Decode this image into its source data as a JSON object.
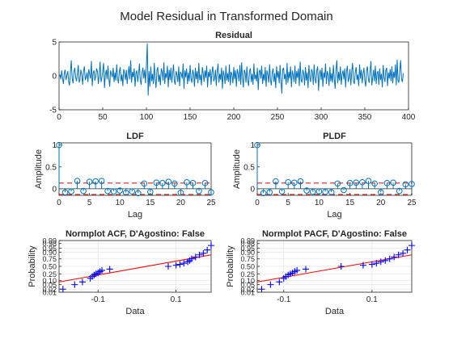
{
  "figure": {
    "title": "Model Residual in Transformed Domain"
  },
  "colors": {
    "series": "#0072BD",
    "conf": "#D9241B",
    "fit": "#FF0000",
    "marker": "#0000FF",
    "axis": "#262626",
    "grid": "#E6E6E6"
  },
  "chart_data": [
    {
      "id": "residual",
      "type": "line",
      "title": "Residual",
      "xlabel": "",
      "ylabel": "",
      "xlim": [
        0,
        400
      ],
      "ylim": [
        -5,
        5
      ],
      "xticks": [
        0,
        50,
        100,
        150,
        200,
        250,
        300,
        350,
        400
      ],
      "yticks": [
        -5,
        0,
        5
      ],
      "y": [
        0.2,
        -0.5,
        0.8,
        -0.3,
        -1.2,
        0.4,
        0.9,
        -0.6,
        0.1,
        0.7,
        -0.9,
        -1.4,
        0.5,
        2.3,
        -0.4,
        -1.1,
        0.6,
        1.2,
        -0.2,
        -0.8,
        0.3,
        1.6,
        -1.0,
        -0.5,
        0.9,
        0.2,
        -1.3,
        0.7,
        1.4,
        -0.6,
        -0.2,
        0.5,
        -0.9,
        1.0,
        0.3,
        -0.4,
        2.2,
        -1.5,
        0.4,
        0.8,
        -0.7,
        -0.1,
        1.1,
        0.6,
        -1.2,
        0.2,
        2.1,
        -0.9,
        -0.3,
        0.7,
        1.9,
        -1.8,
        0.1,
        0.9,
        -0.5,
        1.5,
        -0.4,
        -1.6,
        0.8,
        0.3,
        -0.2,
        1.2,
        -0.9,
        0.5,
        -0.7,
        1.7,
        -0.3,
        -1.1,
        0.6,
        1.3,
        -0.8,
        0.2,
        -1.5,
        1.0,
        0.4,
        -0.6,
        0.9,
        -1.2,
        0.3,
        1.4,
        -0.5,
        2.3,
        -1.0,
        0.6,
        -0.2,
        1.1,
        -1.6,
        0.4,
        0.8,
        -0.9,
        0.2,
        1.8,
        -0.7,
        -1.3,
        0.5,
        1.2,
        -0.4,
        0.9,
        -1.1,
        1.6,
        4.8,
        -2.9,
        0.7,
        -1.6,
        1.4,
        -0.8,
        0.3,
        -1.2,
        1.9,
        -0.5,
        -1.8,
        0.8,
        1.3,
        -0.9,
        0.2,
        -1.4,
        1.1,
        0.6,
        -0.7,
        2.0,
        -1.2,
        0.4,
        -0.3,
        1.5,
        -1.7,
        0.9,
        -0.6,
        1.2,
        -1.0,
        0.3,
        1.7,
        -0.8,
        -1.3,
        0.7,
        0.2,
        -0.9,
        1.4,
        -1.5,
        0.6,
        0.3,
        -0.4,
        1.8,
        -1.9,
        0.8,
        -0.2,
        1.1,
        -1.2,
        0.5,
        -0.8,
        1.6,
        -0.4,
        -1.0,
        0.9,
        0.3,
        -1.6,
        1.2,
        -0.5,
        0.7,
        -1.1,
        1.9,
        -0.6,
        0.2,
        -1.4,
        1.3,
        0.4,
        -0.9,
        0.8,
        -0.3,
        1.5,
        -1.7,
        0.6,
        -0.2,
        1.0,
        -1.3,
        0.5,
        1.4,
        -0.8,
        -0.4,
        0.9,
        -1.5,
        0.7,
        1.8,
        -1.0,
        0.3,
        -0.6,
        1.2,
        -1.9,
        0.8,
        0.1,
        -1.2,
        1.5,
        -0.7,
        0.4,
        -0.9,
        1.7,
        -1.4,
        0.6,
        0.2,
        -1.1,
        1.3,
        -0.5,
        0.8,
        -1.6,
        1.0,
        0.3,
        -0.8,
        1.6,
        -1.3,
        2.0,
        -0.4,
        -1.7,
        0.9,
        0.5,
        -1.0,
        1.4,
        -0.6,
        -1.5,
        0.7,
        1.1,
        -0.9,
        0.3,
        -1.3,
        1.8,
        -0.5,
        0.2,
        -0.8,
        1.2,
        -2.1,
        0.6,
        0.9,
        -0.4,
        1.5,
        -1.2,
        0.3,
        -0.7,
        1.3,
        -1.6,
        0.8,
        0.2,
        -1.0,
        1.7,
        -0.6,
        -1.4,
        0.5,
        1.1,
        -0.9,
        0.4,
        -1.8,
        1.4,
        -0.3,
        0.7,
        -1.1,
        1.6,
        -0.8,
        -2.6,
        0.9,
        1.2,
        -0.5,
        0.3,
        -1.3,
        1.9,
        -1.0,
        0.6,
        -0.4,
        1.4,
        -1.7,
        0.8,
        0.1,
        -0.9,
        1.5,
        -1.2,
        0.7,
        -0.3,
        1.1,
        -1.5,
        2.1,
        -0.6,
        -1.0,
        0.9,
        0.4,
        -1.4,
        1.3,
        -0.7,
        0.5,
        -1.8,
        1.6,
        -0.2,
        -0.9,
        1.0,
        0.6,
        -1.3,
        1.7,
        -0.5,
        -1.1,
        0.8,
        1.4,
        -2.2,
        0.3,
        0.9,
        -0.6,
        1.2,
        -1.6,
        0.5,
        -0.3,
        1.8,
        -1.2,
        0.7,
        0.2,
        -1.5,
        1.3,
        -0.8,
        0.4,
        -1.0,
        1.6,
        -0.4,
        -1.9,
        0.9,
        2.3,
        -1.1,
        0.6,
        -0.7,
        1.4,
        -1.3,
        0.2,
        0.8,
        -0.5,
        1.1,
        -1.7,
        0.6,
        1.5,
        -0.9,
        -0.3,
        1.0,
        -1.4,
        0.7,
        1.9,
        -0.8,
        -1.2,
        0.5,
        1.3,
        -0.6,
        0.2,
        -1.5,
        1.7,
        -0.4,
        0.9,
        -1.1,
        0.3,
        1.2,
        -0.7,
        -1.6,
        0.8,
        1.4,
        -0.5,
        -1.0,
        0.6,
        2.2,
        -1.4,
        -0.3,
        0.9,
        -0.8,
        1.5,
        -1.2,
        0.4,
        0.7,
        -1.3,
        1.1,
        -0.6,
        0.3,
        -1.7,
        1.6,
        -0.2,
        -0.9,
        0.8,
        1.2,
        -1.5,
        0.5,
        -0.4,
        1.0,
        -0.8,
        1.4,
        -1.1,
        0.6,
        -0.3,
        1.7,
        -1.4,
        2.4,
        -0.7,
        -1.0,
        0.8,
        2.3,
        -0.5,
        -0.9,
        0.4
      ]
    },
    {
      "id": "ldf",
      "type": "stem",
      "title": "LDF",
      "xlabel": "Lag",
      "ylabel": "Amplitude",
      "xlim": [
        0,
        25
      ],
      "ylim": [
        -0.15,
        1.05
      ],
      "xticks": [
        0,
        5,
        10,
        15,
        20,
        25
      ],
      "yticks": [
        0,
        0.5,
        1
      ],
      "conf_bounds": [
        0.13,
        -0.13
      ],
      "x": [
        0,
        1,
        2,
        3,
        4,
        5,
        6,
        7,
        8,
        9,
        10,
        11,
        12,
        13,
        14,
        15,
        16,
        17,
        18,
        19,
        20,
        21,
        22,
        23,
        24,
        25
      ],
      "values": [
        1.0,
        -0.08,
        -0.06,
        0.18,
        -0.05,
        0.16,
        0.17,
        0.18,
        -0.05,
        -0.06,
        -0.04,
        -0.09,
        -0.06,
        -0.1,
        0.12,
        -0.07,
        0.14,
        0.13,
        0.16,
        0.12,
        -0.09,
        0.15,
        0.13,
        -0.05,
        0.13,
        -0.08
      ]
    },
    {
      "id": "pldf",
      "type": "stem",
      "title": "PLDF",
      "xlabel": "Lag",
      "ylabel": "Amplitude",
      "xlim": [
        0,
        25
      ],
      "ylim": [
        -0.15,
        1.05
      ],
      "xticks": [
        0,
        5,
        10,
        15,
        20,
        25
      ],
      "yticks": [
        0,
        0.5,
        1
      ],
      "conf_bounds": [
        0.13,
        -0.13
      ],
      "x": [
        0,
        1,
        2,
        3,
        4,
        5,
        6,
        7,
        8,
        9,
        10,
        11,
        12,
        13,
        14,
        15,
        16,
        17,
        18,
        19,
        20,
        21,
        22,
        23,
        24,
        25
      ],
      "values": [
        1.0,
        -0.1,
        -0.08,
        0.17,
        -0.06,
        0.15,
        0.14,
        0.17,
        -0.04,
        -0.07,
        -0.06,
        -0.07,
        -0.08,
        0.12,
        -0.03,
        0.13,
        0.14,
        0.15,
        0.18,
        0.12,
        -0.08,
        0.13,
        0.14,
        -0.05,
        0.1,
        0.11
      ]
    },
    {
      "id": "nacf",
      "type": "scatter",
      "title": "Normplot ACF, D'Agostino: False",
      "xlabel": "Data",
      "ylabel": "Probability",
      "xlim": [
        -0.2,
        0.19
      ],
      "ylim": [
        0.01,
        0.99
      ],
      "xticks": [
        -0.1,
        0.1
      ],
      "yticks": [
        0.01,
        0.02,
        0.05,
        0.1,
        0.25,
        0.5,
        0.75,
        0.9,
        0.95,
        0.98,
        0.99
      ],
      "yticklabels": [
        "0.01",
        "0.02",
        "0.05",
        "0.10",
        "0.25",
        "0.50",
        "0.75",
        "0.90",
        "0.95",
        "0.98",
        "0.99"
      ],
      "fit_line": [
        [
          -0.2,
          0.08
        ],
        [
          0.19,
          0.85
        ]
      ],
      "x": [
        -0.19,
        -0.16,
        -0.14,
        -0.12,
        -0.115,
        -0.11,
        -0.105,
        -0.1,
        -0.095,
        -0.09,
        -0.07,
        0.08,
        0.1,
        0.11,
        0.12,
        0.13,
        0.135,
        0.14,
        0.15,
        0.16,
        0.17,
        0.18,
        0.19
      ],
      "y": [
        0.02,
        0.05,
        0.08,
        0.14,
        0.18,
        0.22,
        0.25,
        0.28,
        0.32,
        0.36,
        0.4,
        0.5,
        0.54,
        0.57,
        0.61,
        0.66,
        0.7,
        0.75,
        0.8,
        0.85,
        0.88,
        0.93,
        0.97
      ]
    },
    {
      "id": "npacf",
      "type": "scatter",
      "title": "Normplot PACF, D'Agostino: False",
      "xlabel": "Data",
      "ylabel": "Probability",
      "xlim": [
        -0.16,
        0.19
      ],
      "ylim": [
        0.01,
        0.99
      ],
      "xticks": [
        -0.1,
        0.1
      ],
      "yticks": [
        0.01,
        0.02,
        0.05,
        0.1,
        0.25,
        0.5,
        0.75,
        0.9,
        0.95,
        0.98,
        0.99
      ],
      "yticklabels": [
        "0.01",
        "0.02",
        "0.05",
        "0.10",
        "0.25",
        "0.50",
        "0.75",
        "0.90",
        "0.95",
        "0.98",
        "0.99"
      ],
      "fit_line": [
        [
          -0.16,
          0.08
        ],
        [
          0.19,
          0.85
        ]
      ],
      "x": [
        -0.15,
        -0.13,
        -0.11,
        -0.1,
        -0.095,
        -0.09,
        -0.085,
        -0.08,
        -0.075,
        -0.07,
        -0.05,
        0.03,
        0.08,
        0.1,
        0.11,
        0.12,
        0.13,
        0.14,
        0.15,
        0.16,
        0.17,
        0.18,
        0.19
      ],
      "y": [
        0.02,
        0.05,
        0.08,
        0.14,
        0.18,
        0.22,
        0.25,
        0.28,
        0.32,
        0.36,
        0.4,
        0.5,
        0.54,
        0.57,
        0.61,
        0.66,
        0.7,
        0.75,
        0.8,
        0.85,
        0.88,
        0.93,
        0.97
      ]
    }
  ]
}
